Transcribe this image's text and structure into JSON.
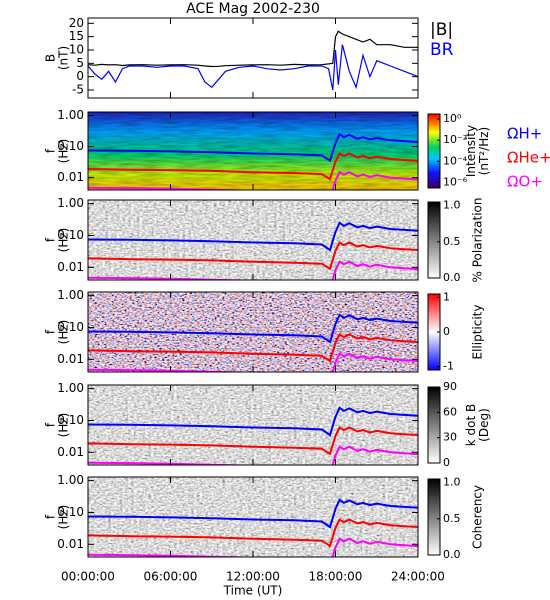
{
  "title": "ACE Mag 2002-230",
  "time_axis": {
    "xlim": [
      0,
      24
    ],
    "xticks": [
      {
        "value": 0,
        "label": "00:00:00"
      },
      {
        "value": 6,
        "label": "06:00:00"
      },
      {
        "value": 12,
        "label": "12:00:00"
      },
      {
        "value": 18,
        "label": "18:00:00"
      },
      {
        "value": 24,
        "label": "24:00:00"
      }
    ],
    "xlabel": "Time (UT)"
  },
  "chart_data": [
    {
      "type": "line",
      "ylabel": [
        "B",
        "(nT)"
      ],
      "ylim": [
        -8,
        22
      ],
      "yticks": [
        -5,
        0,
        5,
        10,
        15,
        20
      ],
      "x": [
        0,
        0.5,
        1,
        1.5,
        2,
        2.5,
        3,
        4,
        5,
        6,
        7,
        8,
        8.5,
        9,
        9.5,
        10,
        11,
        12,
        13,
        14,
        15,
        16,
        17,
        17.5,
        17.8,
        18,
        18.2,
        18.5,
        19,
        19.5,
        20,
        20.5,
        21,
        22,
        23,
        24
      ],
      "series": [
        {
          "name": "|B|",
          "color": "#000000",
          "values": [
            4.5,
            4.3,
            4.6,
            4.4,
            4.5,
            4.2,
            4.4,
            4.5,
            4.3,
            4.4,
            4.5,
            4.3,
            4.0,
            3.8,
            3.9,
            4.1,
            4.3,
            4.4,
            4.5,
            4.3,
            4.6,
            4.4,
            4.5,
            4.8,
            5,
            15,
            17,
            16,
            15,
            14,
            13,
            14,
            12,
            12,
            11,
            11
          ]
        },
        {
          "name": "BR",
          "color": "#0000ff",
          "values": [
            4,
            1,
            -1,
            2,
            -2,
            3,
            4,
            4,
            3.5,
            4,
            4,
            3,
            -2,
            -4,
            -1,
            2,
            3.5,
            4,
            3,
            2.5,
            3,
            4,
            4,
            3,
            -5,
            10,
            -3,
            12,
            2,
            -4,
            8,
            0,
            6,
            4,
            2,
            0
          ]
        }
      ]
    },
    {
      "type": "spectrogram",
      "colormap": "rainbow",
      "ylabel": [
        "f",
        "(Hz)"
      ],
      "ylim": [
        0.004,
        1.3
      ],
      "log_y": true,
      "yticks": [
        0.01,
        {
          "value": 0.1,
          "label": "0.10"
        },
        {
          "value": 1,
          "label": "1.00"
        }
      ],
      "clabel": [
        "Intensity",
        "(nT²/Hz)"
      ],
      "clim": [
        3e-07,
        3
      ],
      "log_c": true,
      "cticks": [
        {
          "value": 1e-06,
          "label": "10⁻⁶"
        },
        {
          "value": 0.0001,
          "label": "10⁻⁴"
        },
        {
          "value": 0.01,
          "label": "10⁻²"
        },
        {
          "value": 1,
          "label": "10⁰"
        }
      ],
      "gyro_x": [
        0,
        3,
        6,
        9,
        12,
        15,
        17,
        17.6,
        18,
        18.3,
        18.6,
        19,
        19.6,
        20,
        20.5,
        21,
        22,
        23,
        24
      ],
      "series": [
        {
          "name": "ΩH+",
          "color": "#0000ff",
          "values": [
            0.075,
            0.073,
            0.07,
            0.066,
            0.06,
            0.057,
            0.052,
            0.035,
            0.13,
            0.25,
            0.2,
            0.24,
            0.18,
            0.2,
            0.17,
            0.19,
            0.16,
            0.15,
            0.14
          ]
        },
        {
          "name": "ΩHe+",
          "color": "#ff0000",
          "values": [
            0.019,
            0.018,
            0.0175,
            0.0165,
            0.015,
            0.014,
            0.013,
            0.009,
            0.033,
            0.06,
            0.05,
            0.06,
            0.045,
            0.05,
            0.042,
            0.047,
            0.04,
            0.037,
            0.035
          ]
        },
        {
          "name": "ΩO+",
          "color": "#ff00ff",
          "values": [
            0.0047,
            0.0046,
            0.0044,
            0.0041,
            0.0038,
            0.0036,
            0.0033,
            0.0022,
            0.008,
            0.015,
            0.0125,
            0.015,
            0.011,
            0.0125,
            0.0105,
            0.012,
            0.01,
            0.0093,
            0.0088
          ]
        }
      ]
    },
    {
      "type": "spectrogram",
      "colormap": "gray",
      "clabel": [
        "% Polarization"
      ],
      "clim": [
        0,
        1.05
      ],
      "cticks": [
        {
          "value": 0,
          "label": "0.0"
        },
        {
          "value": 0.5,
          "label": "0.5"
        },
        {
          "value": 1,
          "label": "1.0"
        }
      ]
    },
    {
      "type": "spectrogram",
      "colormap": "bwr",
      "clabel": [
        "Ellipticity"
      ],
      "clim": [
        -1.1,
        1.1
      ],
      "cticks": [
        -1,
        0,
        1
      ]
    },
    {
      "type": "spectrogram",
      "colormap": "gray",
      "clabel": [
        "k dot B",
        "(Deg)"
      ],
      "clim": [
        0,
        90
      ],
      "cticks": [
        0,
        30,
        60,
        90
      ]
    },
    {
      "type": "spectrogram",
      "colormap": "gray",
      "clabel": [
        "Coherency"
      ],
      "clim": [
        0,
        1.05
      ],
      "cticks": [
        {
          "value": 0,
          "label": "0.0"
        },
        {
          "value": 0.5,
          "label": "0.5"
        },
        {
          "value": 1,
          "label": "1.0"
        }
      ]
    }
  ]
}
